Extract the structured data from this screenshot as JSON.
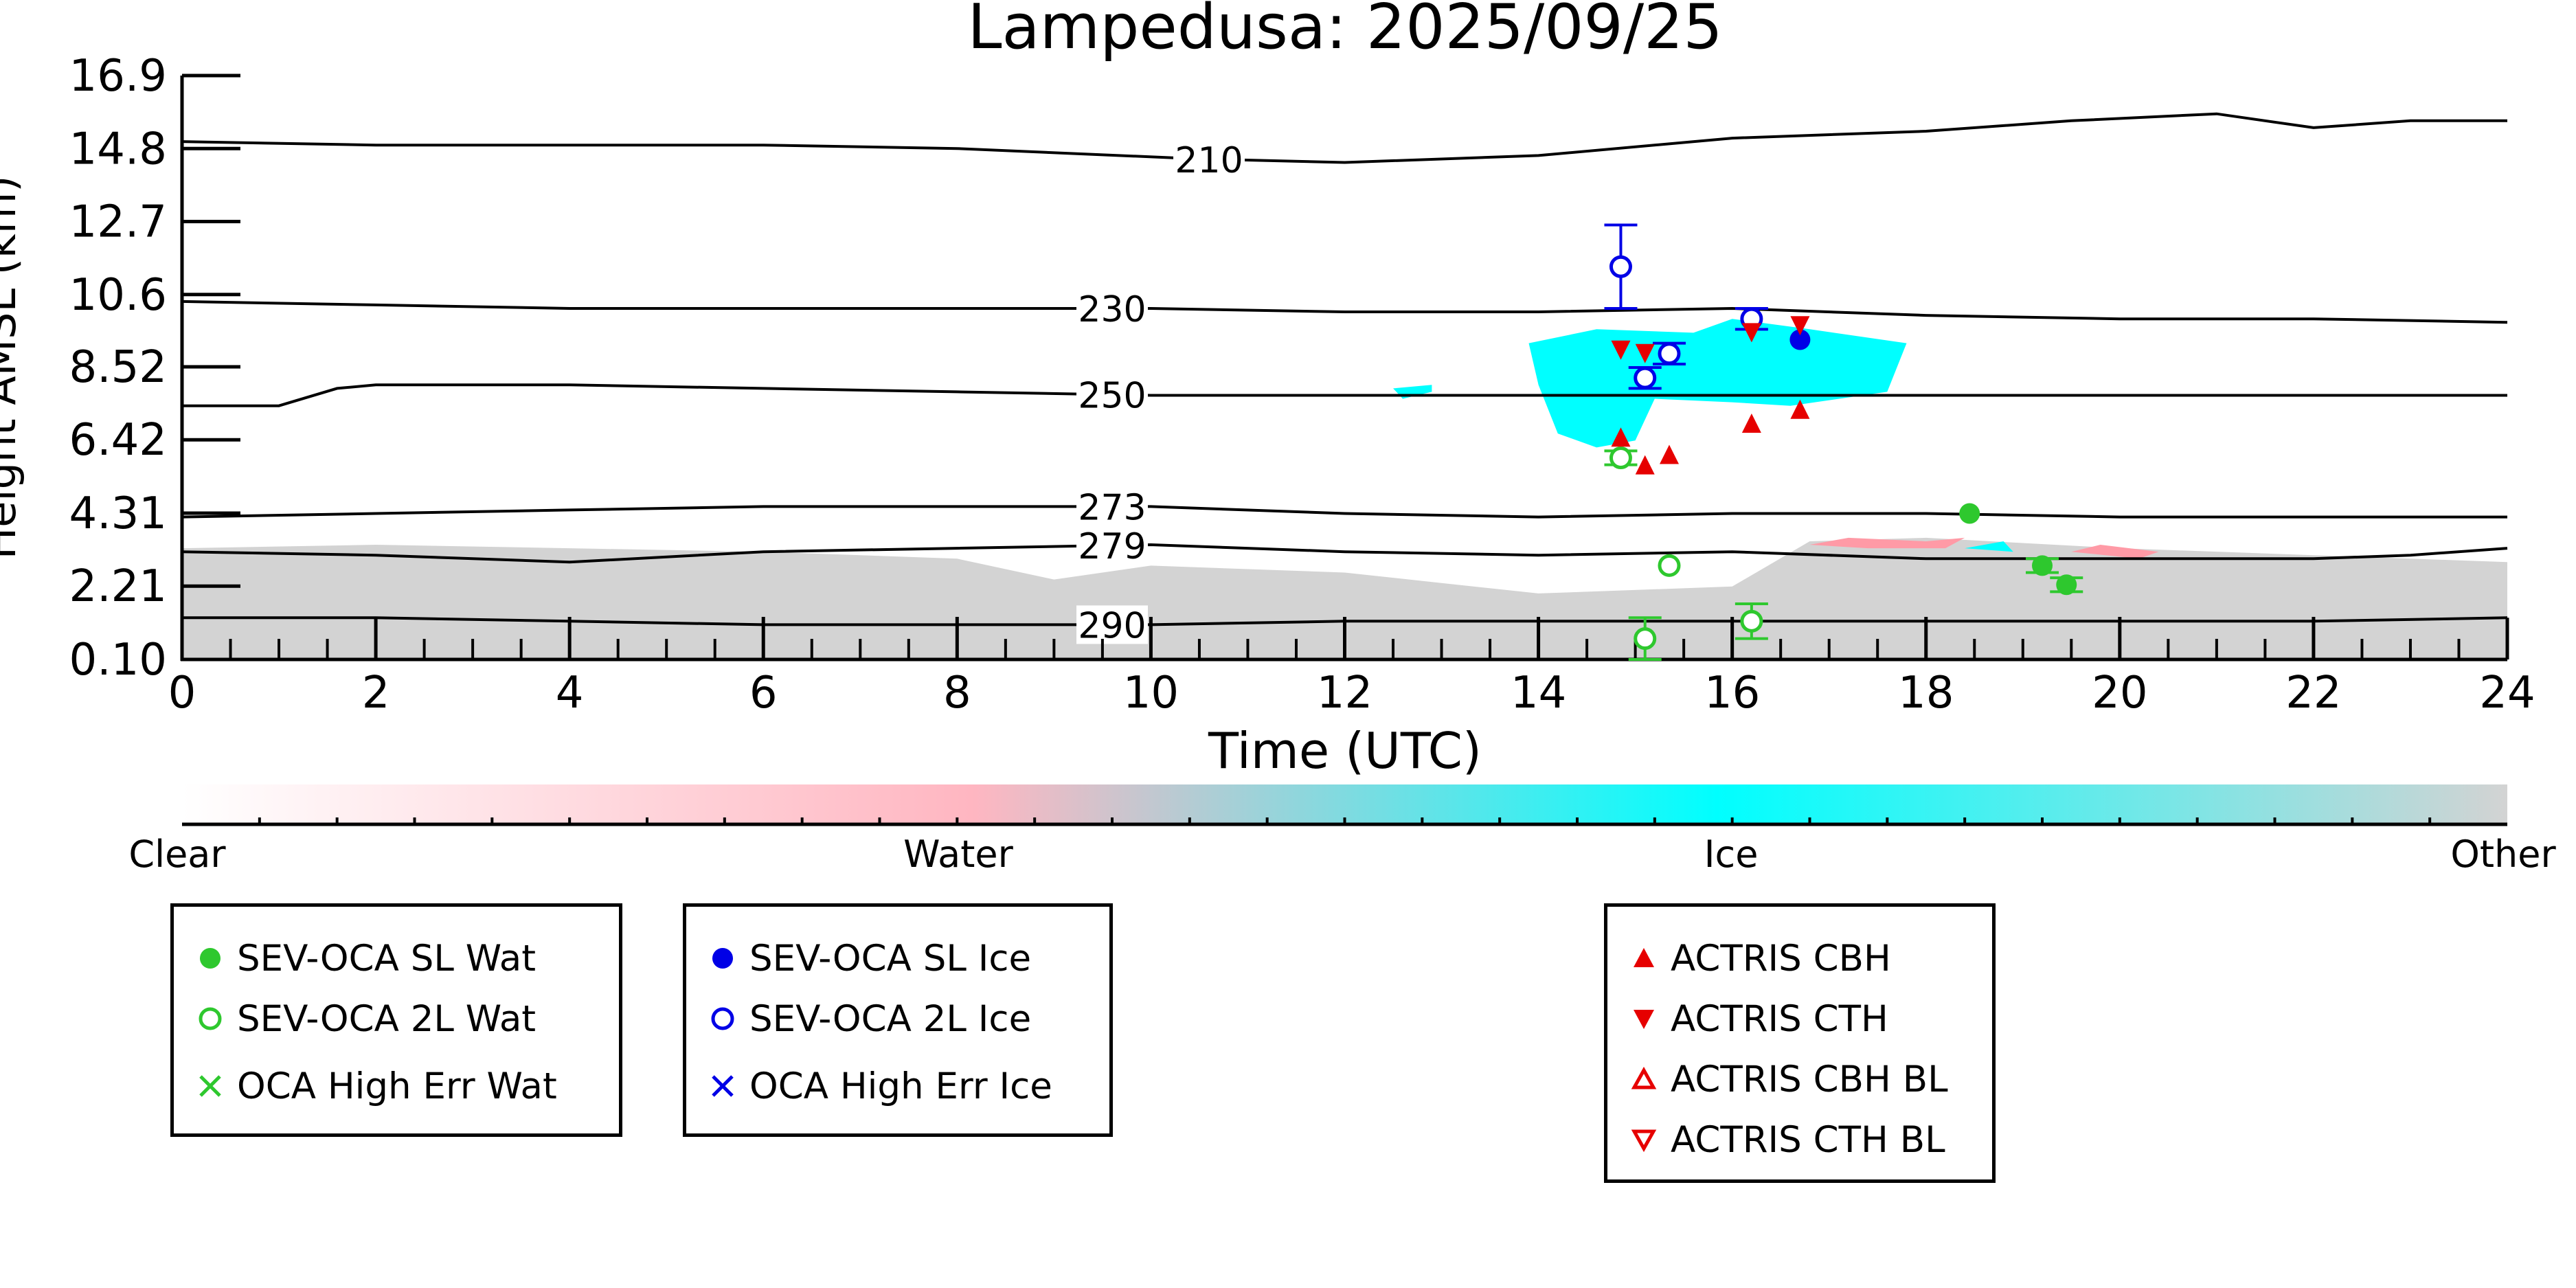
{
  "chart_data": {
    "type": "scatter",
    "title": "Lampedusa: 2025/09/25",
    "xlabel": "Time (UTC)",
    "ylabel": "Height AMSL (km)",
    "xlim": [
      0,
      24
    ],
    "ylim": [
      0.1,
      16.9
    ],
    "xticks": [
      "0",
      "2",
      "4",
      "6",
      "8",
      "10",
      "12",
      "14",
      "16",
      "18",
      "20",
      "22",
      "24"
    ],
    "yticks": [
      "0.10",
      "2.21",
      "4.31",
      "6.42",
      "8.52",
      "10.6",
      "12.7",
      "14.8",
      "16.9"
    ],
    "ytick_values": [
      0.1,
      2.21,
      4.31,
      6.42,
      8.52,
      10.6,
      12.7,
      14.8,
      16.9
    ],
    "colorbar": {
      "labels": [
        "Clear",
        "Water",
        "Ice",
        "Other"
      ],
      "colors": [
        "#ffffff",
        "#ffb6c1",
        "#00ffff",
        "#d3d3d3"
      ]
    },
    "contours": [
      {
        "label": "210",
        "label_x": 10.6,
        "points": [
          [
            0,
            15.0
          ],
          [
            2,
            14.9
          ],
          [
            4,
            14.9
          ],
          [
            6,
            14.9
          ],
          [
            8,
            14.8
          ],
          [
            10.5,
            14.5
          ],
          [
            12,
            14.4
          ],
          [
            14,
            14.6
          ],
          [
            16,
            15.1
          ],
          [
            18,
            15.3
          ],
          [
            19.5,
            15.6
          ],
          [
            21,
            15.8
          ],
          [
            22,
            15.4
          ],
          [
            23,
            15.6
          ],
          [
            24,
            15.6
          ]
        ]
      },
      {
        "label": "230",
        "label_x": 9.6,
        "points": [
          [
            0,
            10.4
          ],
          [
            2,
            10.3
          ],
          [
            4,
            10.2
          ],
          [
            6,
            10.2
          ],
          [
            8,
            10.2
          ],
          [
            10,
            10.2
          ],
          [
            12,
            10.1
          ],
          [
            14,
            10.1
          ],
          [
            16,
            10.2
          ],
          [
            18,
            10.0
          ],
          [
            20,
            9.9
          ],
          [
            22,
            9.9
          ],
          [
            24,
            9.8
          ]
        ]
      },
      {
        "label": "250",
        "label_x": 9.6,
        "points": [
          [
            0,
            7.4
          ],
          [
            1,
            7.4
          ],
          [
            1.6,
            7.9
          ],
          [
            2,
            8.0
          ],
          [
            4,
            8.0
          ],
          [
            6,
            7.9
          ],
          [
            8,
            7.8
          ],
          [
            10,
            7.7
          ],
          [
            12,
            7.7
          ],
          [
            14,
            7.7
          ],
          [
            16,
            7.7
          ],
          [
            18,
            7.7
          ],
          [
            20,
            7.7
          ],
          [
            22,
            7.7
          ],
          [
            24,
            7.7
          ]
        ]
      },
      {
        "label": "273",
        "label_x": 9.6,
        "points": [
          [
            0,
            4.2
          ],
          [
            2,
            4.3
          ],
          [
            4,
            4.4
          ],
          [
            6,
            4.5
          ],
          [
            8,
            4.5
          ],
          [
            10,
            4.5
          ],
          [
            12,
            4.3
          ],
          [
            14,
            4.2
          ],
          [
            16,
            4.3
          ],
          [
            18,
            4.3
          ],
          [
            20,
            4.2
          ],
          [
            22,
            4.2
          ],
          [
            24,
            4.2
          ]
        ]
      },
      {
        "label": "279",
        "label_x": 9.6,
        "points": [
          [
            0,
            3.2
          ],
          [
            2,
            3.1
          ],
          [
            4,
            2.9
          ],
          [
            6,
            3.2
          ],
          [
            8,
            3.3
          ],
          [
            10,
            3.4
          ],
          [
            12,
            3.2
          ],
          [
            14,
            3.1
          ],
          [
            16,
            3.2
          ],
          [
            18,
            3.0
          ],
          [
            20,
            3.0
          ],
          [
            22,
            3.0
          ],
          [
            23,
            3.1
          ],
          [
            24,
            3.3
          ]
        ]
      },
      {
        "label": "290",
        "label_x": 9.6,
        "points": [
          [
            0,
            1.3
          ],
          [
            2,
            1.3
          ],
          [
            4,
            1.2
          ],
          [
            6,
            1.1
          ],
          [
            8,
            1.1
          ],
          [
            10,
            1.1
          ],
          [
            12,
            1.2
          ],
          [
            14,
            1.2
          ],
          [
            16,
            1.2
          ],
          [
            18,
            1.2
          ],
          [
            20,
            1.2
          ],
          [
            22,
            1.2
          ],
          [
            24,
            1.3
          ]
        ]
      }
    ],
    "cloud_regions": [
      {
        "class": "Other",
        "color": "#d3d3d3",
        "points": [
          [
            0,
            0.1
          ],
          [
            0,
            3.3
          ],
          [
            2,
            3.4
          ],
          [
            4,
            3.3
          ],
          [
            6,
            3.2
          ],
          [
            8,
            3.0
          ],
          [
            9,
            2.4
          ],
          [
            10,
            2.8
          ],
          [
            12,
            2.6
          ],
          [
            13,
            2.3
          ],
          [
            14,
            2.0
          ],
          [
            16,
            2.2
          ],
          [
            16.8,
            3.5
          ],
          [
            18,
            3.6
          ],
          [
            20,
            3.3
          ],
          [
            22,
            3.1
          ],
          [
            24,
            2.9
          ],
          [
            24,
            0.1
          ]
        ]
      },
      {
        "class": "Water",
        "color": "#ff9aa6",
        "points": [
          [
            16.8,
            3.4
          ],
          [
            17.2,
            3.6
          ],
          [
            18,
            3.5
          ],
          [
            18.4,
            3.6
          ],
          [
            18.2,
            3.3
          ],
          [
            17.4,
            3.3
          ]
        ]
      },
      {
        "class": "Water",
        "color": "#ff9aa6",
        "points": [
          [
            19.5,
            3.2
          ],
          [
            19.8,
            3.4
          ],
          [
            20.4,
            3.2
          ],
          [
            20.2,
            3.0
          ]
        ]
      },
      {
        "class": "Ice",
        "color": "#00ffff",
        "points": [
          [
            13.9,
            9.2
          ],
          [
            14.6,
            9.6
          ],
          [
            15.6,
            9.5
          ],
          [
            16.0,
            9.9
          ],
          [
            16.8,
            9.6
          ],
          [
            17.8,
            9.2
          ],
          [
            17.6,
            7.8
          ],
          [
            16.6,
            7.4
          ],
          [
            16.0,
            7.5
          ],
          [
            15.2,
            7.6
          ],
          [
            15.0,
            6.4
          ],
          [
            14.6,
            6.2
          ],
          [
            14.2,
            6.6
          ],
          [
            14.0,
            8.0
          ]
        ]
      },
      {
        "class": "Ice",
        "color": "#00ffff",
        "points": [
          [
            12.5,
            7.9
          ],
          [
            12.9,
            8.0
          ],
          [
            12.9,
            7.8
          ],
          [
            12.6,
            7.6
          ]
        ]
      },
      {
        "class": "Ice",
        "color": "#00ffff",
        "points": [
          [
            18.4,
            3.3
          ],
          [
            18.8,
            3.5
          ],
          [
            18.9,
            3.2
          ]
        ]
      }
    ],
    "series": [
      {
        "name": "SEV-OCA SL Wat",
        "marker": "filled-circle",
        "color": "#2ec82e",
        "points": [
          [
            18.45,
            4.3
          ],
          [
            19.2,
            2.8
          ],
          [
            19.45,
            2.25
          ]
        ],
        "err": [
          0,
          0.2,
          0.2
        ]
      },
      {
        "name": "SEV-OCA 2L Wat",
        "marker": "open-circle",
        "color": "#2ec82e",
        "points": [
          [
            14.85,
            5.9
          ],
          [
            15.35,
            2.8
          ],
          [
            15.1,
            0.7
          ],
          [
            16.2,
            1.2
          ]
        ],
        "err": [
          0.2,
          0,
          0.6,
          0.5
        ]
      },
      {
        "name": "OCA High Err Wat",
        "marker": "x",
        "color": "#2ec82e",
        "points": []
      },
      {
        "name": "SEV-OCA SL Ice",
        "marker": "filled-circle",
        "color": "#0000e6",
        "points": [
          [
            16.7,
            9.3
          ]
        ],
        "err": [
          0
        ]
      },
      {
        "name": "SEV-OCA 2L Ice",
        "marker": "open-circle",
        "color": "#0000e6",
        "points": [
          [
            14.85,
            11.4
          ],
          [
            15.1,
            8.2
          ],
          [
            15.35,
            8.9
          ],
          [
            16.2,
            9.9
          ]
        ],
        "err": [
          1.2,
          0.3,
          0.3,
          0.3
        ]
      },
      {
        "name": "OCA High Err Ice",
        "marker": "x",
        "color": "#0000e6",
        "points": []
      },
      {
        "name": "ACTRIS CBH",
        "marker": "triangle-up",
        "color": "#e60000",
        "points": [
          [
            14.85,
            6.5
          ],
          [
            15.1,
            5.7
          ],
          [
            15.35,
            6.0
          ],
          [
            16.2,
            6.9
          ],
          [
            16.7,
            7.3
          ]
        ]
      },
      {
        "name": "ACTRIS CTH",
        "marker": "triangle-down",
        "color": "#e60000",
        "points": [
          [
            14.85,
            9.0
          ],
          [
            15.1,
            8.9
          ],
          [
            16.2,
            9.5
          ],
          [
            16.7,
            9.7
          ]
        ]
      },
      {
        "name": "ACTRIS CBH BL",
        "marker": "open-triangle-up",
        "color": "#e60000",
        "points": []
      },
      {
        "name": "ACTRIS CTH BL",
        "marker": "open-triangle-down",
        "color": "#e60000",
        "points": []
      }
    ]
  },
  "legends": [
    {
      "items": [
        {
          "label": "SEV-OCA SL Wat",
          "marker": "filled-circle",
          "color": "#2ec82e"
        },
        {
          "label": "SEV-OCA 2L Wat",
          "marker": "open-circle",
          "color": "#2ec82e"
        },
        {
          "label": "OCA High Err Wat",
          "marker": "x",
          "color": "#2ec82e"
        }
      ]
    },
    {
      "items": [
        {
          "label": "SEV-OCA SL Ice",
          "marker": "filled-circle",
          "color": "#0000e6"
        },
        {
          "label": "SEV-OCA 2L Ice",
          "marker": "open-circle",
          "color": "#0000e6"
        },
        {
          "label": "OCA High Err Ice",
          "marker": "x",
          "color": "#0000e6"
        }
      ]
    },
    {
      "items": [
        {
          "label": "ACTRIS CBH",
          "marker": "triangle-up",
          "color": "#e60000"
        },
        {
          "label": "ACTRIS CTH",
          "marker": "triangle-down",
          "color": "#e60000"
        },
        {
          "label": "ACTRIS CBH BL",
          "marker": "open-triangle-up",
          "color": "#e60000"
        },
        {
          "label": "ACTRIS CTH BL",
          "marker": "open-triangle-down",
          "color": "#e60000"
        }
      ]
    }
  ]
}
